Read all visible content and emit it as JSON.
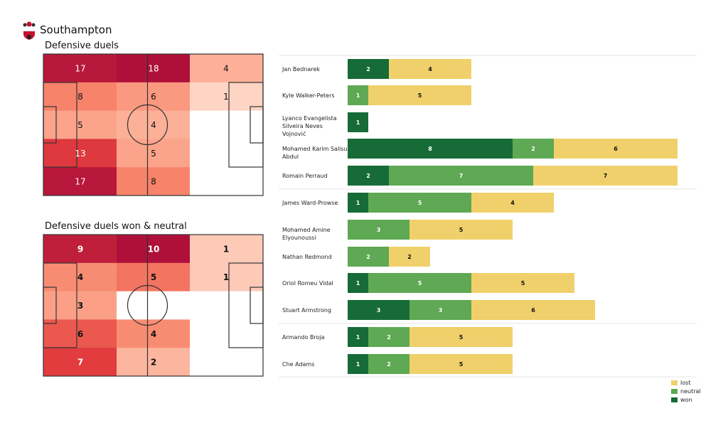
{
  "team": "Southampton",
  "colors": {
    "won": "#166b37",
    "neutral": "#5fa854",
    "lost": "#f0d06a"
  },
  "chart_data": [
    {
      "type": "heatmap",
      "title": "Defensive duels",
      "values": [
        [
          17,
          18,
          4
        ],
        [
          8,
          6,
          1
        ],
        [
          5,
          4,
          0
        ],
        [
          13,
          5,
          0
        ],
        [
          17,
          8,
          0
        ]
      ]
    },
    {
      "type": "heatmap",
      "title": "Defensive duels won & neutral",
      "values": [
        [
          9,
          10,
          1
        ],
        [
          4,
          5,
          1
        ],
        [
          3,
          0,
          0
        ],
        [
          6,
          4,
          0
        ],
        [
          7,
          2,
          0
        ]
      ]
    },
    {
      "type": "bar",
      "stacked": true,
      "orientation": "horizontal",
      "categories": [
        "Jan Bednarek",
        "Kyle Walker-Peters",
        "Lyanco Evangelista Silveira Neves Vojnović",
        "Mohamed Karim Salisu Abdul",
        "Romain Perraud",
        "James  Ward-Prowse",
        "Mohamed Amine Elyounoussi",
        "Nathan Redmond",
        "Oriol Romeu Vidal",
        "Stuart Armstrong",
        "Armando Broja",
        "Che Adams"
      ],
      "series": [
        {
          "name": "won",
          "values": [
            2,
            0,
            1,
            8,
            2,
            1,
            0,
            0,
            1,
            3,
            1,
            1
          ]
        },
        {
          "name": "neutral",
          "values": [
            0,
            1,
            0,
            2,
            7,
            5,
            3,
            2,
            5,
            3,
            2,
            2
          ]
        },
        {
          "name": "lost",
          "values": [
            4,
            5,
            0,
            6,
            7,
            4,
            5,
            2,
            5,
            6,
            5,
            5
          ]
        }
      ],
      "legend": "bottom-right"
    }
  ]
}
